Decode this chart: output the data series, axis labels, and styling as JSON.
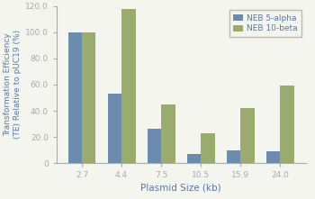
{
  "categories": [
    "2.7",
    "4.4",
    "7.5",
    "10.5",
    "15.9",
    "24.0"
  ],
  "neb5alpha": [
    100,
    53,
    26,
    7,
    10,
    9
  ],
  "neb10beta": [
    100,
    118,
    45,
    23,
    42,
    59
  ],
  "color_5alpha": "#6b8cae",
  "color_10beta": "#9aab6e",
  "xlabel": "Plasmid Size (kb)",
  "ylabel_line1": "Transformation Efficiency",
  "ylabel_line2": "(TE) Relative to pUC19 (%)",
  "ylim": [
    0,
    120
  ],
  "yticks": [
    0,
    20.0,
    40.0,
    60.0,
    80.0,
    100.0,
    120.0
  ],
  "ytick_labels": [
    "0",
    "20.0",
    "40.0",
    "60.0",
    "80.0",
    "100.0",
    "120.0"
  ],
  "legend_labels": [
    "NEB 5-alpha",
    "NEB 10-beta"
  ],
  "bar_width": 0.35,
  "figsize": [
    3.5,
    2.21
  ],
  "dpi": 100,
  "text_color": "#5577aa",
  "spine_color": "#aaaaaa",
  "bg_color": "#f5f5f0"
}
